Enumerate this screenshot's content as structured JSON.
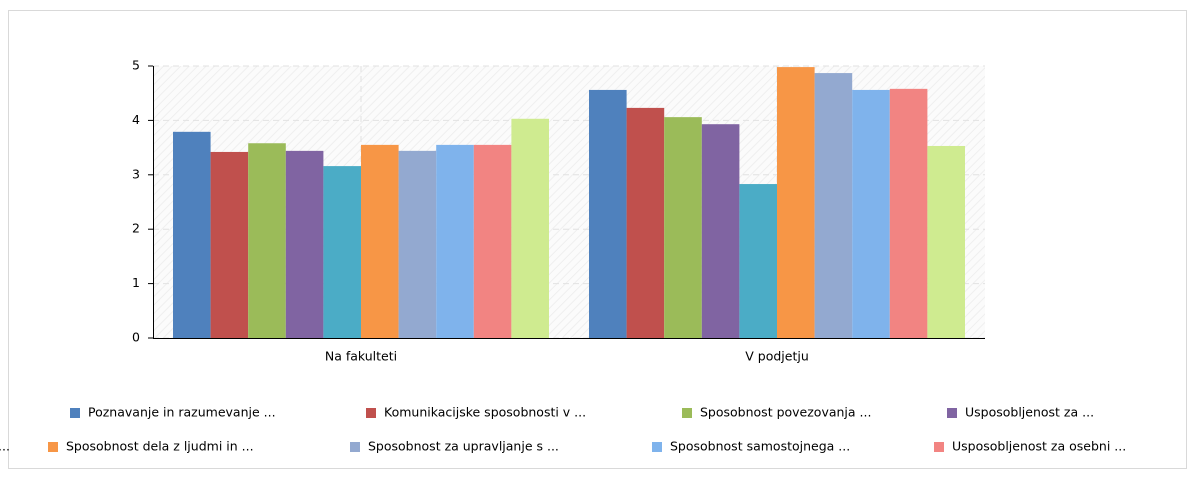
{
  "chart_data": {
    "type": "bar",
    "categories": [
      "Na fakulteti",
      "V podjetju"
    ],
    "series": [
      {
        "name": "Poznavanje in razumevanje ...",
        "color": "#4f81bd",
        "values": [
          3.79,
          4.56
        ]
      },
      {
        "name": "Komunikacijske sposobnosti v ...",
        "color": "#c0504d",
        "values": [
          3.42,
          4.23
        ]
      },
      {
        "name": "Sposobnost povezovanja ...",
        "color": "#9bbb59",
        "values": [
          3.58,
          4.06
        ]
      },
      {
        "name": "Usposobljenost za ...",
        "color": "#8064a2",
        "values": [
          3.44,
          3.93
        ]
      },
      {
        "name": "...",
        "color": "#4bacc6",
        "values": [
          3.16,
          2.83
        ]
      },
      {
        "name": "Sposobnost dela z ljudmi in ...",
        "color": "#f79646",
        "values": [
          3.55,
          4.98
        ]
      },
      {
        "name": "Sposobnost za upravljanje s ...",
        "color": "#93a9d0",
        "values": [
          3.44,
          4.87
        ]
      },
      {
        "name": "Sposobnost samostojnega ...",
        "color": "#7fb3ec",
        "values": [
          3.55,
          4.56
        ]
      },
      {
        "name": "Usposobljenost za osebni ...",
        "color": "#f28482",
        "values": [
          3.55,
          4.58
        ]
      },
      {
        "color": "#cfeb90",
        "values": [
          4.03,
          3.53
        ]
      }
    ],
    "ylim": [
      0,
      5
    ],
    "yticks": [
      0,
      1,
      2,
      3,
      4,
      5
    ],
    "grid": true
  }
}
